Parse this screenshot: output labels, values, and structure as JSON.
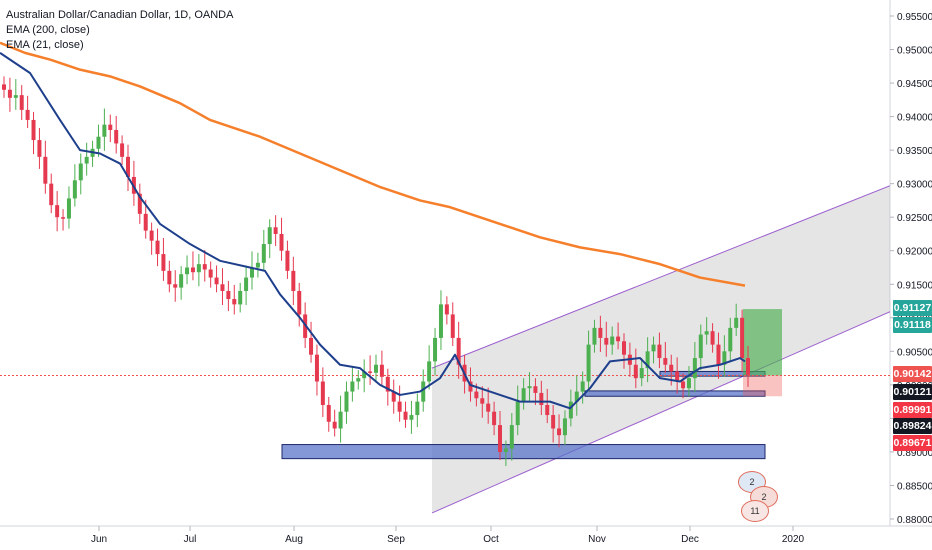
{
  "header": {
    "title": "Australian Dollar/Canadian Dollar, 1D, OANDA",
    "indicators": [
      "EMA (200, close)",
      "EMA (21, close)"
    ]
  },
  "price_tags": {
    "target_up_1": "0.91127",
    "target_up_2": "0.91118",
    "last": "0.90142",
    "level_a": "0.90121",
    "level_b": "0.89991",
    "level_c": "0.89824",
    "level_d": "0.89671"
  },
  "events": {
    "flag_1_count": "2",
    "flag_2_count": "2",
    "flag_3_count": "11"
  },
  "colors": {
    "up": "#26a69a",
    "down": "#ef5350",
    "candle_up": "#4caf50",
    "candle_down": "#e53950",
    "ema200": "#f57f2b",
    "ema21": "#1e3f8c",
    "channel": "#9c5fcf",
    "zone": "#5b74c9"
  },
  "chart_data": {
    "type": "candlestick",
    "symbol": "AUDCAD",
    "timeframe": "1D",
    "y_axis": {
      "range": [
        0.88,
        0.9575
      ],
      "ticks": [
        "0.95500",
        "0.95000",
        "0.94500",
        "0.94000",
        "0.93500",
        "0.93000",
        "0.92500",
        "0.92000",
        "0.91500",
        "0.91000",
        "0.90500",
        "0.90000",
        "0.89500",
        "0.89000",
        "0.88500",
        "0.88000"
      ]
    },
    "x_axis": {
      "ticks": [
        "Jun",
        "Jul",
        "Aug",
        "Sep",
        "Oct",
        "Nov",
        "Dec",
        "2020"
      ]
    },
    "ema200": [
      [
        0,
        0.951
      ],
      [
        25,
        0.9495
      ],
      [
        50,
        0.9485
      ],
      [
        80,
        0.947
      ],
      [
        110,
        0.946
      ],
      [
        140,
        0.9445
      ],
      [
        180,
        0.942
      ],
      [
        210,
        0.9395
      ],
      [
        260,
        0.937
      ],
      [
        300,
        0.9345
      ],
      [
        340,
        0.932
      ],
      [
        380,
        0.9295
      ],
      [
        420,
        0.9275
      ],
      [
        450,
        0.9265
      ],
      [
        500,
        0.924
      ],
      [
        540,
        0.922
      ],
      [
        580,
        0.9205
      ],
      [
        620,
        0.9195
      ],
      [
        660,
        0.918
      ],
      [
        700,
        0.916
      ],
      [
        745,
        0.9148
      ]
    ],
    "ema21": [
      [
        0,
        0.9495
      ],
      [
        30,
        0.9465
      ],
      [
        60,
        0.9395
      ],
      [
        80,
        0.935
      ],
      [
        100,
        0.9345
      ],
      [
        120,
        0.933
      ],
      [
        140,
        0.928
      ],
      [
        160,
        0.924
      ],
      [
        190,
        0.921
      ],
      [
        220,
        0.9185
      ],
      [
        250,
        0.9175
      ],
      [
        265,
        0.917
      ],
      [
        280,
        0.9135
      ],
      [
        300,
        0.91
      ],
      [
        320,
        0.906
      ],
      [
        340,
        0.903
      ],
      [
        360,
        0.9025
      ],
      [
        380,
        0.9
      ],
      [
        400,
        0.8985
      ],
      [
        420,
        0.899
      ],
      [
        440,
        0.901
      ],
      [
        455,
        0.9045
      ],
      [
        470,
        0.9
      ],
      [
        490,
        0.899
      ],
      [
        520,
        0.8975
      ],
      [
        550,
        0.8975
      ],
      [
        570,
        0.8965
      ],
      [
        590,
        0.8995
      ],
      [
        610,
        0.9035
      ],
      [
        640,
        0.904
      ],
      [
        660,
        0.901
      ],
      [
        680,
        0.9005
      ],
      [
        700,
        0.9025
      ],
      [
        720,
        0.903
      ],
      [
        740,
        0.904
      ],
      [
        745,
        0.9035
      ]
    ],
    "channel": {
      "upper": [
        [
          432,
          0.9025
        ],
        [
          890,
          0.9297
        ]
      ],
      "lower": [
        [
          432,
          0.8809
        ],
        [
          890,
          0.9109
        ]
      ]
    },
    "zones": [
      {
        "x1": 282,
        "x2": 765,
        "top": 0.8911,
        "bottom": 0.889
      },
      {
        "x1": 585,
        "x2": 765,
        "top": 0.8991,
        "bottom": 0.8983
      },
      {
        "x1": 660,
        "x2": 765,
        "top": 0.902,
        "bottom": 0.9013
      }
    ],
    "position": {
      "x1": 743,
      "x2": 782,
      "entry": 0.9014,
      "target": 0.9113,
      "stop": 0.8983
    },
    "candles_seed": [
      0.944,
      0.9428,
      0.9432,
      0.941,
      0.9395,
      0.9365,
      0.934,
      0.93,
      0.9268,
      0.925,
      0.9248,
      0.9278,
      0.9305,
      0.933,
      0.934,
      0.9352,
      0.937,
      0.9388,
      0.938,
      0.936,
      0.934,
      0.931,
      0.9285,
      0.9255,
      0.923,
      0.9215,
      0.9195,
      0.917,
      0.915,
      0.9145,
      0.9165,
      0.9175,
      0.9168,
      0.918,
      0.9172,
      0.916,
      0.915,
      0.914,
      0.9128,
      0.912,
      0.914,
      0.916,
      0.9175,
      0.9182,
      0.921,
      0.9235,
      0.9225,
      0.92,
      0.917,
      0.914,
      0.9105,
      0.907,
      0.9045,
      0.9005,
      0.897,
      0.8945,
      0.8935,
      0.896,
      0.899,
      0.9005,
      0.901,
      0.902,
      0.9018,
      0.903,
      0.9012,
      0.899,
      0.8975,
      0.896,
      0.8948,
      0.8955,
      0.8975,
      0.9005,
      0.9035,
      0.907,
      0.912,
      0.9105,
      0.907,
      0.903,
      0.9005,
      0.899,
      0.898,
      0.8972,
      0.896,
      0.894,
      0.89,
      0.8905,
      0.894,
      0.8975,
      0.8995,
      0.8998,
      0.8988,
      0.897,
      0.8955,
      0.8935,
      0.8925,
      0.895,
      0.8975,
      0.899,
      0.9005,
      0.906,
      0.9085,
      0.907,
      0.906,
      0.9072,
      0.9065,
      0.9045,
      0.903,
      0.901,
      0.9025,
      0.905,
      0.906,
      0.904,
      0.903,
      0.902,
      0.9005,
      0.8995,
      0.901,
      0.904,
      0.9075,
      0.908,
      0.906,
      0.903,
      0.905,
      0.9085,
      0.91,
      0.904,
      0.9015
    ]
  }
}
